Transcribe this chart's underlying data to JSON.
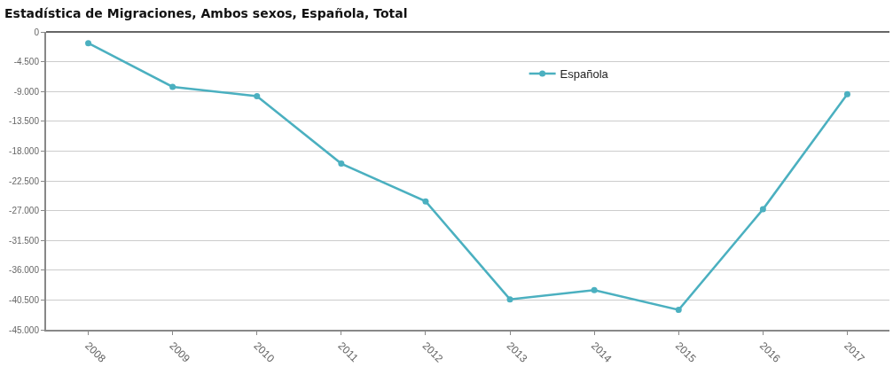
{
  "chart_data": {
    "type": "line",
    "title": "Estadística de Migraciones, Ambos sexos, Española, Total",
    "categories": [
      "2008",
      "2009",
      "2010",
      "2011",
      "2012",
      "2013",
      "2014",
      "2015",
      "2016",
      "2017"
    ],
    "series": [
      {
        "name": "Española",
        "color": "#4bb0c0",
        "values": [
          -1700,
          -8300,
          -9700,
          -19900,
          -25600,
          -40400,
          -39000,
          -42000,
          -26800,
          -9400
        ]
      }
    ],
    "ylim": [
      -45000,
      0
    ],
    "yticks": [
      {
        "value": 0,
        "label": "0"
      },
      {
        "value": -4500,
        "label": "-4.500"
      },
      {
        "value": -9000,
        "label": "-9.000"
      },
      {
        "value": -13500,
        "label": "-13.500"
      },
      {
        "value": -18000,
        "label": "-18.000"
      },
      {
        "value": -22500,
        "label": "-22.500"
      },
      {
        "value": -27000,
        "label": "-27.000"
      },
      {
        "value": -31500,
        "label": "-31.500"
      },
      {
        "value": -36000,
        "label": "-36.000"
      },
      {
        "value": -40500,
        "label": "-40.500"
      },
      {
        "value": -45000,
        "label": "-45.000"
      }
    ],
    "grid": "y",
    "legend": "top",
    "marker": "circle",
    "line_style": "solid"
  }
}
